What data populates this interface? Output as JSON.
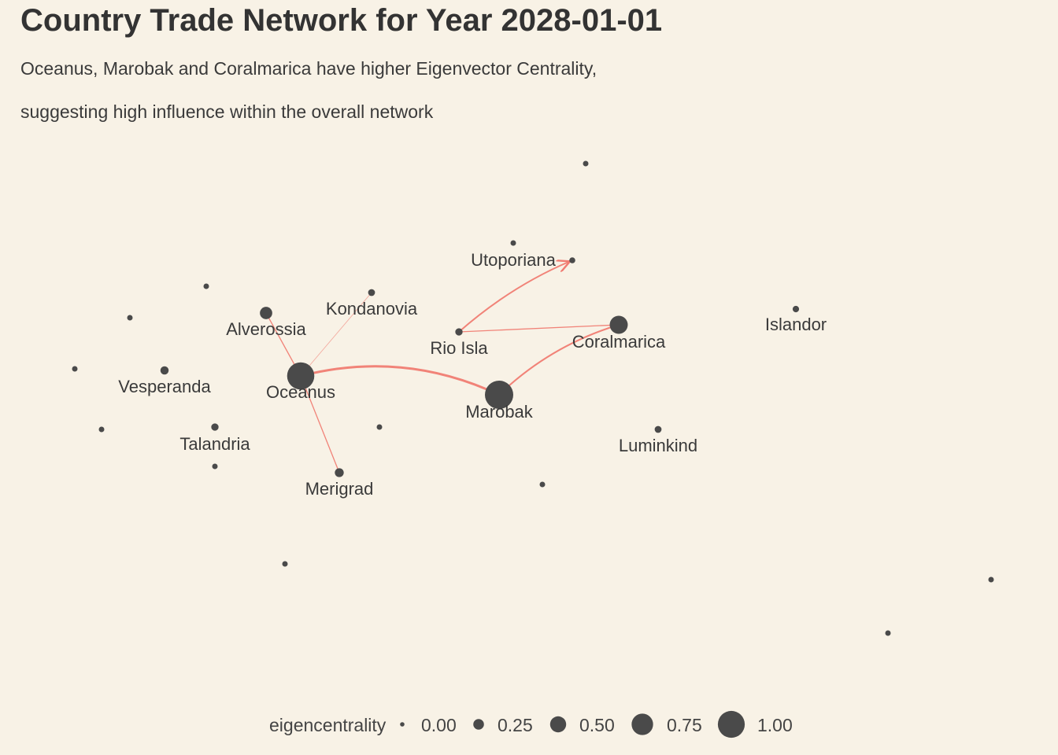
{
  "title": "Country Trade Network for Year 2028-01-01",
  "subtitle_line1": "Oceanus, Marobak and Coralmarica have higher Eigenvector Centrality,",
  "subtitle_line2": "suggesting high influence within the overall network",
  "colors": {
    "background": "#f8f2e6",
    "node": "#4a4a4a",
    "edge": "#f07c72",
    "text": "#333333"
  },
  "legend": {
    "title": "eigencentrality",
    "entries": [
      {
        "label": "0.00",
        "value": 0.0
      },
      {
        "label": "0.25",
        "value": 0.25
      },
      {
        "label": "0.50",
        "value": 0.5
      },
      {
        "label": "0.75",
        "value": 0.75
      },
      {
        "label": "1.00",
        "value": 1.0
      }
    ]
  },
  "nodes": [
    {
      "id": "oceanus",
      "label": "Oceanus",
      "eigencentrality": 0.95
    },
    {
      "id": "marobak",
      "label": "Marobak",
      "eigencentrality": 1.0
    },
    {
      "id": "coralmarica",
      "label": "Coralmarica",
      "eigencentrality": 0.55
    },
    {
      "id": "alverossia",
      "label": "Alverossia",
      "eigencentrality": 0.3
    },
    {
      "id": "kondanovia",
      "label": "Kondanovia",
      "eigencentrality": 0.06
    },
    {
      "id": "rio-isla",
      "label": "Rio Isla",
      "eigencentrality": 0.08
    },
    {
      "id": "utoporiana",
      "label": "Utoporiana",
      "eigencentrality": 0.02
    },
    {
      "id": "islandor",
      "label": "Islandor",
      "eigencentrality": 0.04
    },
    {
      "id": "vesperanda",
      "label": "Vesperanda",
      "eigencentrality": 0.12
    },
    {
      "id": "talandria",
      "label": "Talandria",
      "eigencentrality": 0.08
    },
    {
      "id": "merigrad",
      "label": "Merigrad",
      "eigencentrality": 0.15
    },
    {
      "id": "luminkind",
      "label": "Luminkind",
      "eigencentrality": 0.06
    },
    {
      "id": "u1",
      "label": "",
      "eigencentrality": 0.0
    },
    {
      "id": "u2",
      "label": "",
      "eigencentrality": 0.0
    },
    {
      "id": "u3",
      "label": "",
      "eigencentrality": 0.0
    },
    {
      "id": "u4",
      "label": "",
      "eigencentrality": 0.0
    },
    {
      "id": "u5",
      "label": "",
      "eigencentrality": 0.0
    },
    {
      "id": "u6",
      "label": "",
      "eigencentrality": 0.0
    },
    {
      "id": "u7",
      "label": "",
      "eigencentrality": 0.0
    },
    {
      "id": "u8",
      "label": "",
      "eigencentrality": 0.0
    },
    {
      "id": "u9",
      "label": "",
      "eigencentrality": 0.0
    },
    {
      "id": "u10",
      "label": "",
      "eigencentrality": 0.0
    },
    {
      "id": "u11",
      "label": "",
      "eigencentrality": 0.0
    },
    {
      "id": "u12",
      "label": "",
      "eigencentrality": 0.0
    },
    {
      "id": "u13",
      "label": "",
      "eigencentrality": 0.0
    },
    {
      "id": "u14",
      "label": "",
      "eigencentrality": 0.0
    }
  ],
  "edges": [
    {
      "source": "oceanus",
      "target": "marobak",
      "weight": "heavy"
    },
    {
      "source": "marobak",
      "target": "coralmarica",
      "weight": "medium"
    },
    {
      "source": "rio-isla",
      "target": "coralmarica",
      "weight": "light"
    },
    {
      "source": "rio-isla",
      "target": "utoporiana",
      "weight": "medium",
      "arrow": true
    },
    {
      "source": "oceanus",
      "target": "alverossia",
      "weight": "light"
    },
    {
      "source": "oceanus",
      "target": "kondanovia",
      "weight": "thin"
    },
    {
      "source": "oceanus",
      "target": "merigrad",
      "weight": "light"
    }
  ]
}
